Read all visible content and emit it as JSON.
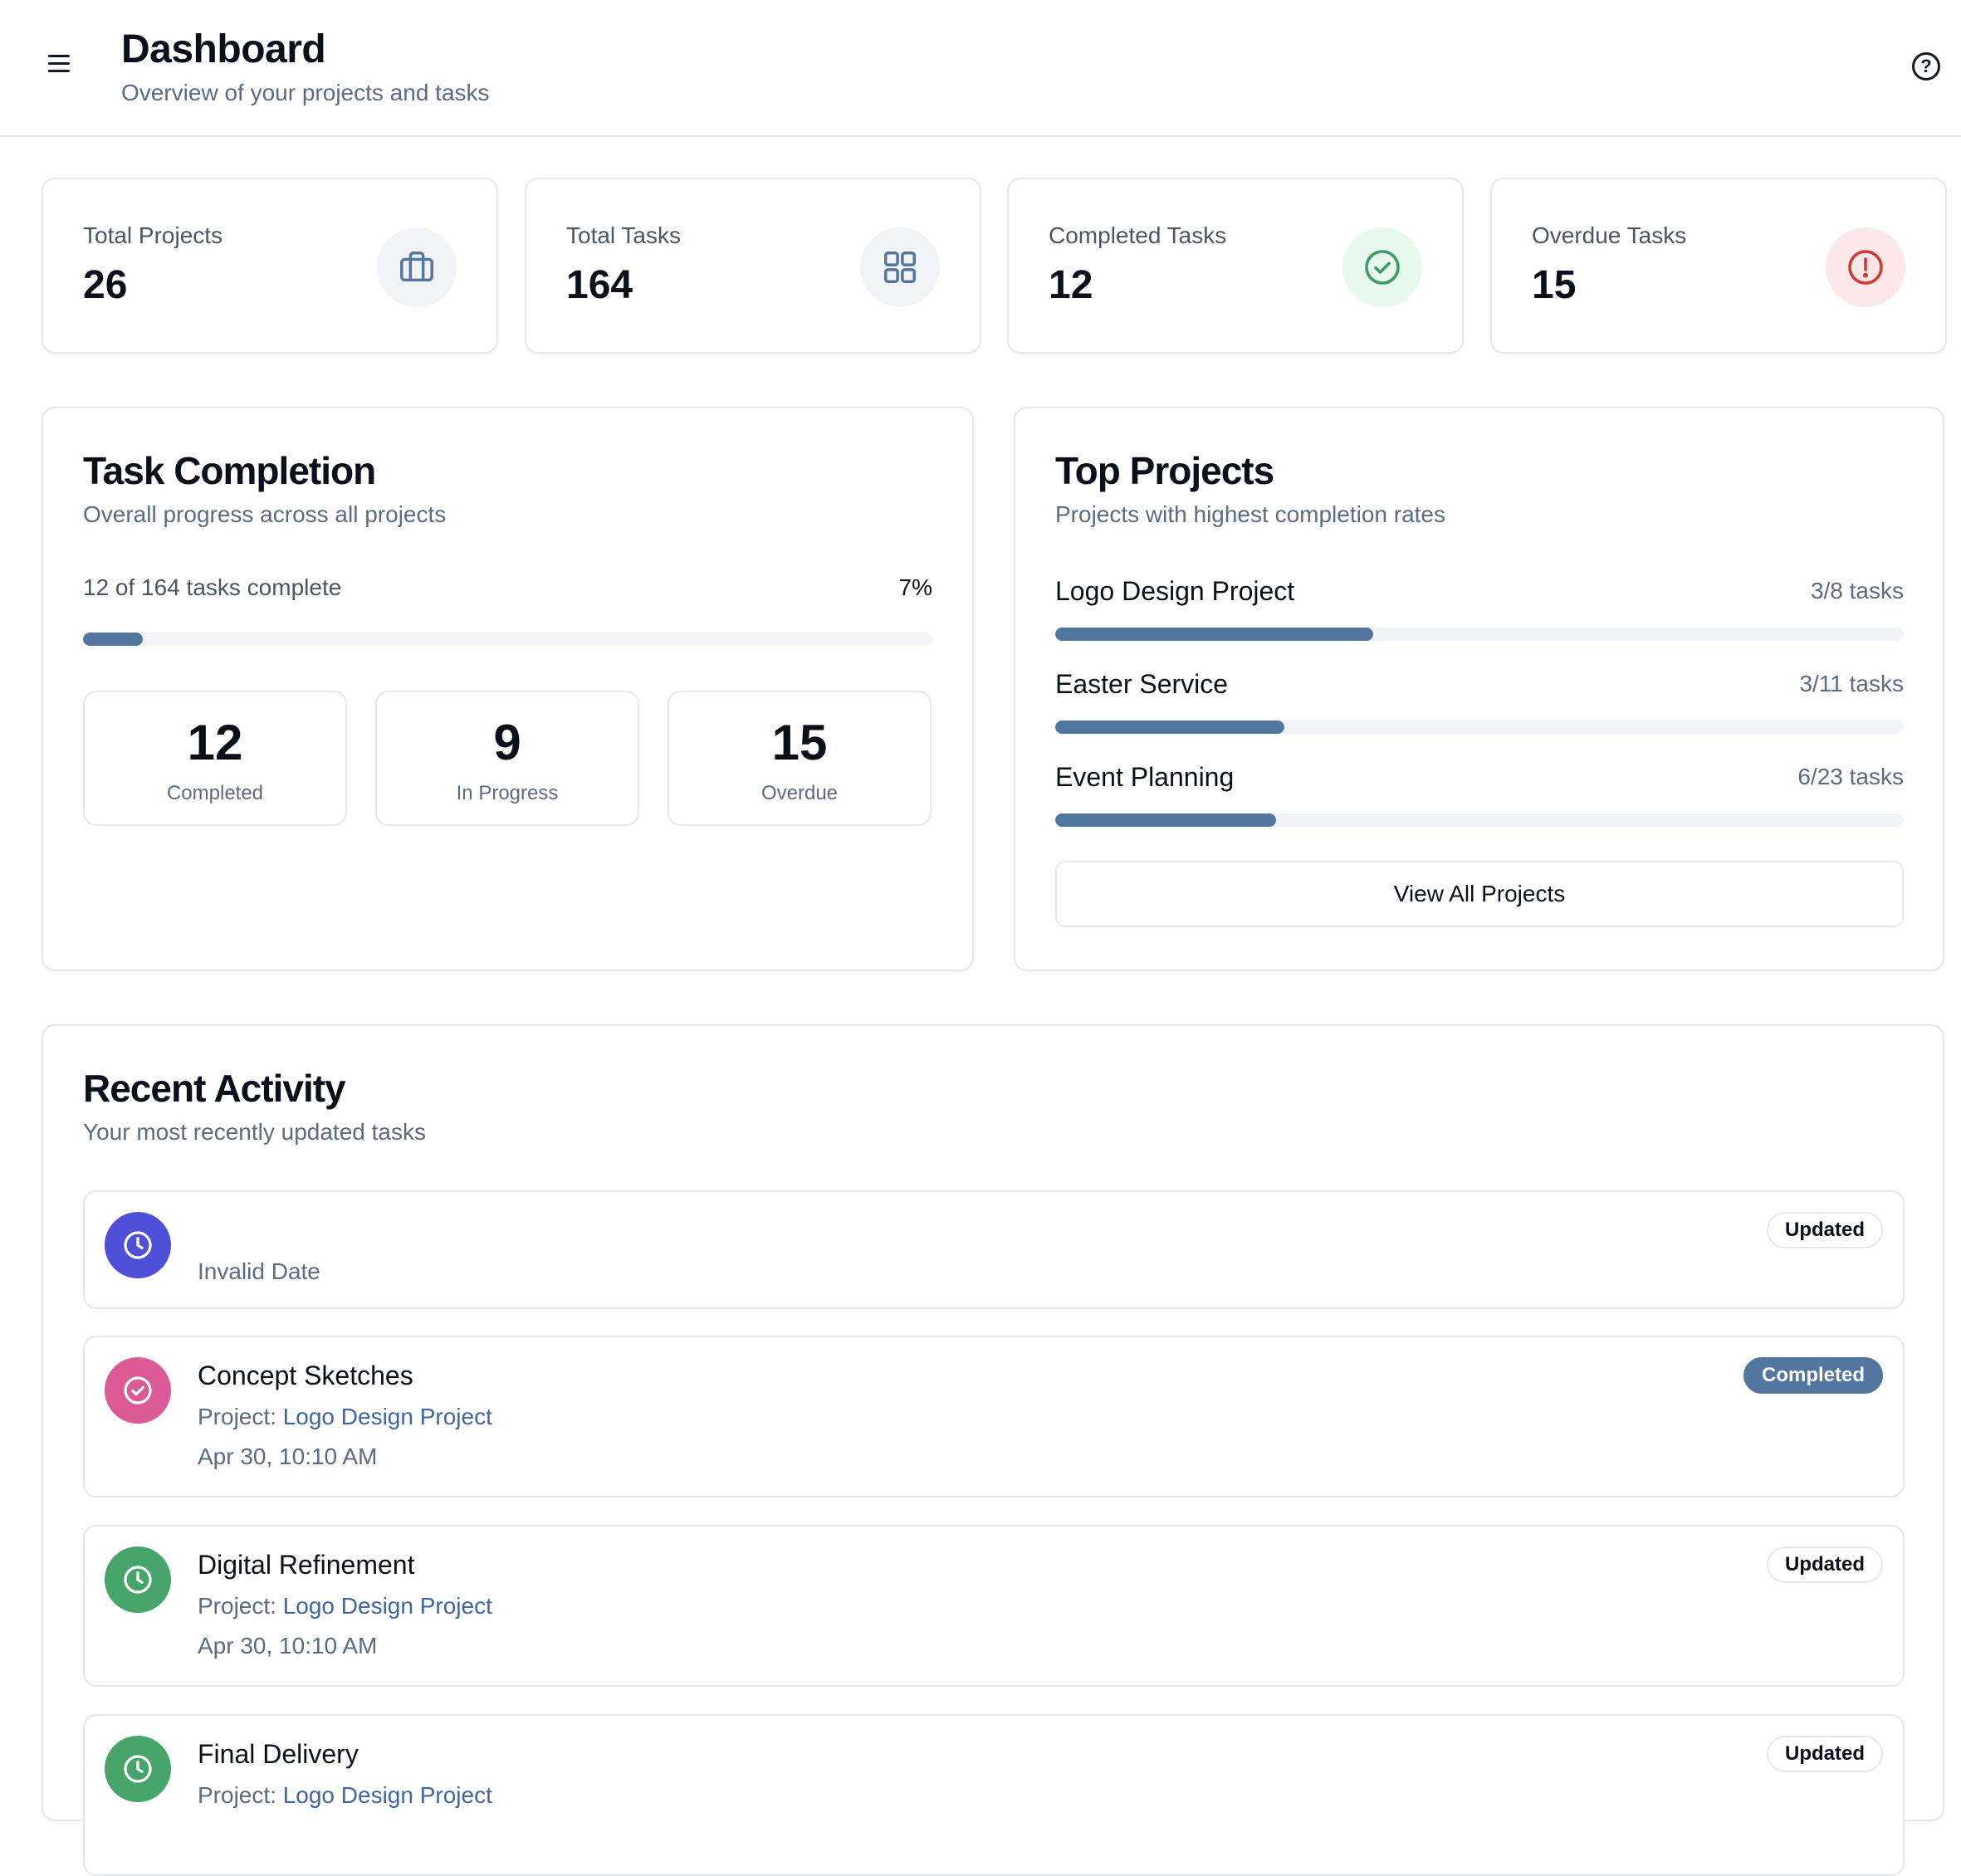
{
  "header": {
    "title": "Dashboard",
    "subtitle": "Overview of your projects and tasks",
    "menu_icon": "menu-icon",
    "help_icon": "help-icon"
  },
  "stats": [
    {
      "label": "Total Projects",
      "value": "26",
      "icon": "briefcase-icon",
      "icon_color": "#53769f",
      "icon_bg": "#f1f3f6"
    },
    {
      "label": "Total Tasks",
      "value": "164",
      "icon": "grid-icon",
      "icon_color": "#53769f",
      "icon_bg": "#f1f3f6"
    },
    {
      "label": "Completed Tasks",
      "value": "12",
      "icon": "check-circle-icon",
      "icon_color": "#3f9b62",
      "icon_bg": "#e7f8ec"
    },
    {
      "label": "Overdue Tasks",
      "value": "15",
      "icon": "alert-circle-icon",
      "icon_color": "#d23a3a",
      "icon_bg": "#fde8e8"
    }
  ],
  "task_completion": {
    "title": "Task Completion",
    "subtitle": "Overall progress across all projects",
    "summary": "12 of 164 tasks complete",
    "percent_label": "7%",
    "progress": 0.07,
    "boxes": [
      {
        "value": "12",
        "label": "Completed"
      },
      {
        "value": "9",
        "label": "In Progress"
      },
      {
        "value": "15",
        "label": "Overdue"
      }
    ]
  },
  "top_projects": {
    "title": "Top Projects",
    "subtitle": "Projects with highest completion rates",
    "projects": [
      {
        "name": "Logo Design Project",
        "count": "3/8 tasks",
        "progress": 0.375
      },
      {
        "name": "Easter Service",
        "count": "3/11 tasks",
        "progress": 0.27
      },
      {
        "name": "Event Planning",
        "count": "6/23 tasks",
        "progress": 0.26
      }
    ],
    "view_all_label": "View All Projects"
  },
  "recent_activity": {
    "title": "Recent Activity",
    "subtitle": "Your most recently updated tasks",
    "project_prefix": "Project: ",
    "items": [
      {
        "title": "",
        "project": "",
        "date": "Invalid Date",
        "badge": "Updated",
        "icon": "clock-icon",
        "icon_bg": "#4f4fd9"
      },
      {
        "title": "Concept Sketches",
        "project": "Logo Design Project",
        "date": "Apr 30, 10:10 AM",
        "badge": "Completed",
        "icon": "check-circle-icon",
        "icon_bg": "#db5a96"
      },
      {
        "title": "Digital Refinement",
        "project": "Logo Design Project",
        "date": "Apr 30, 10:10 AM",
        "badge": "Updated",
        "icon": "clock-icon",
        "icon_bg": "#47a46b"
      },
      {
        "title": "Final Delivery",
        "project": "Logo Design Project",
        "date": "",
        "badge": "Updated",
        "icon": "clock-icon",
        "icon_bg": "#47a46b"
      }
    ]
  }
}
